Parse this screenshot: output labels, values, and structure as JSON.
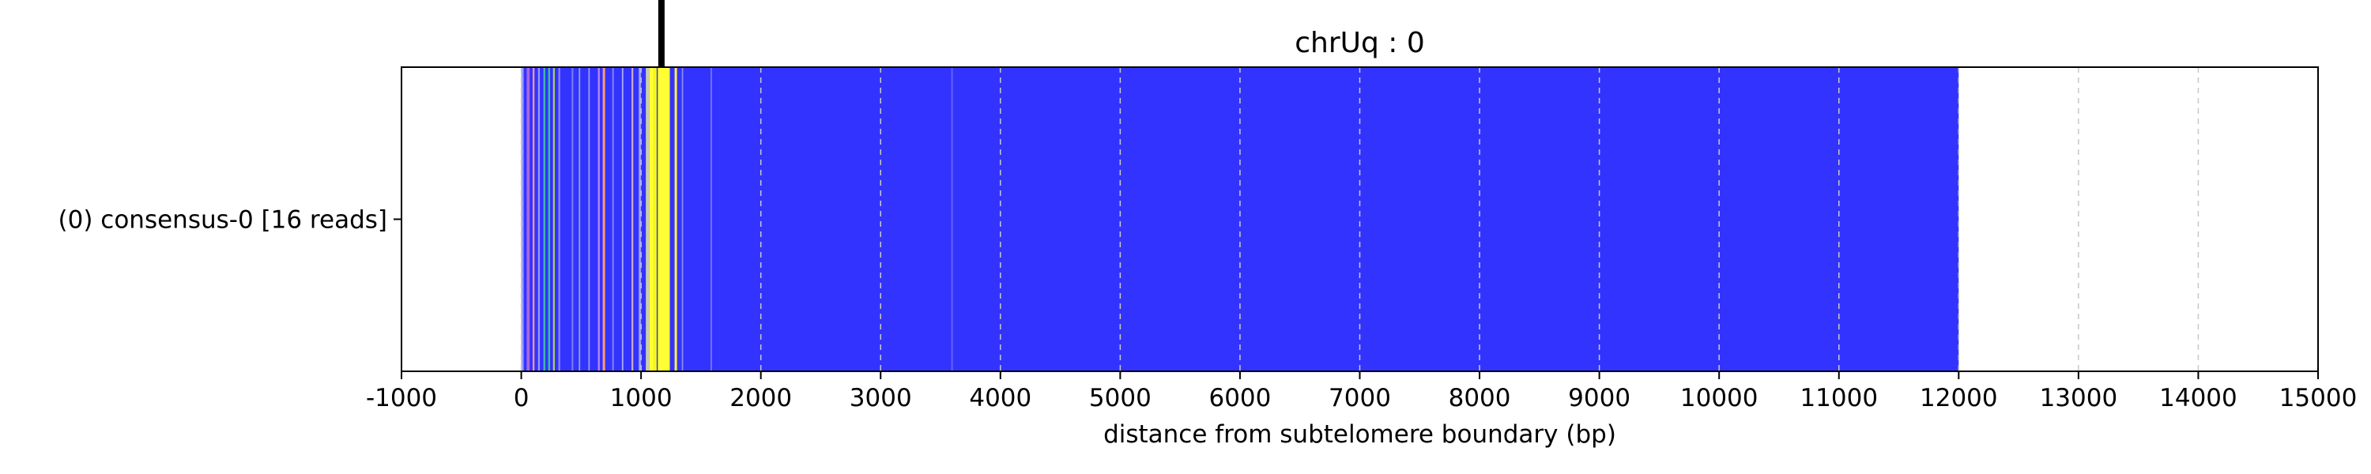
{
  "chart_data": {
    "type": "bar",
    "title": "chrUq : 0",
    "xlabel": "distance from subtelomere boundary (bp)",
    "ylabel": "",
    "xlim": [
      -1000,
      15000
    ],
    "xticks": [
      -1000,
      0,
      1000,
      2000,
      3000,
      4000,
      5000,
      6000,
      7000,
      8000,
      9000,
      10000,
      11000,
      12000,
      13000,
      14000,
      15000
    ],
    "xtick_labels": [
      "-1000",
      "0",
      "1000",
      "2000",
      "3000",
      "4000",
      "5000",
      "6000",
      "7000",
      "8000",
      "9000",
      "10000",
      "11000",
      "12000",
      "13000",
      "14000",
      "15000"
    ],
    "grid": "vertical dashed",
    "categories": [
      "(0) consensus-0 [16 reads]"
    ],
    "base_color": "#3333ff",
    "bar_span": [
      0,
      12000
    ],
    "marker_position": 1170,
    "marker_color": "#000000",
    "segments": [
      {
        "start": 0,
        "end": 20,
        "color": "#9999ff"
      },
      {
        "start": 45,
        "end": 70,
        "color": "#aa66dd"
      },
      {
        "start": 95,
        "end": 110,
        "color": "#ff9999"
      },
      {
        "start": 140,
        "end": 155,
        "color": "#9999ff"
      },
      {
        "start": 185,
        "end": 200,
        "color": "#44bbaa"
      },
      {
        "start": 225,
        "end": 240,
        "color": "#33cc88"
      },
      {
        "start": 265,
        "end": 280,
        "color": "#aacc66"
      },
      {
        "start": 310,
        "end": 325,
        "color": "#8888ee"
      },
      {
        "start": 420,
        "end": 435,
        "color": "#7777ee"
      },
      {
        "start": 480,
        "end": 492,
        "color": "#88aacc"
      },
      {
        "start": 560,
        "end": 572,
        "color": "#9999ff"
      },
      {
        "start": 640,
        "end": 655,
        "color": "#bb88ee"
      },
      {
        "start": 680,
        "end": 700,
        "color": "#ff9966"
      },
      {
        "start": 760,
        "end": 772,
        "color": "#8888ee"
      },
      {
        "start": 840,
        "end": 852,
        "color": "#aaaaff"
      },
      {
        "start": 920,
        "end": 935,
        "color": "#ccaacc"
      },
      {
        "start": 980,
        "end": 1000,
        "color": "#9999ff"
      },
      {
        "start": 1040,
        "end": 1070,
        "color": "#ccccaa"
      },
      {
        "start": 1070,
        "end": 1110,
        "color": "#ffff33"
      },
      {
        "start": 1110,
        "end": 1130,
        "color": "#ffff00"
      },
      {
        "start": 1140,
        "end": 1240,
        "color": "#ffff33"
      },
      {
        "start": 1280,
        "end": 1300,
        "color": "#ffee44"
      },
      {
        "start": 1340,
        "end": 1352,
        "color": "#8888ee"
      },
      {
        "start": 1580,
        "end": 1592,
        "color": "#7777ee"
      },
      {
        "start": 3590,
        "end": 3602,
        "color": "#6666ff"
      }
    ]
  }
}
